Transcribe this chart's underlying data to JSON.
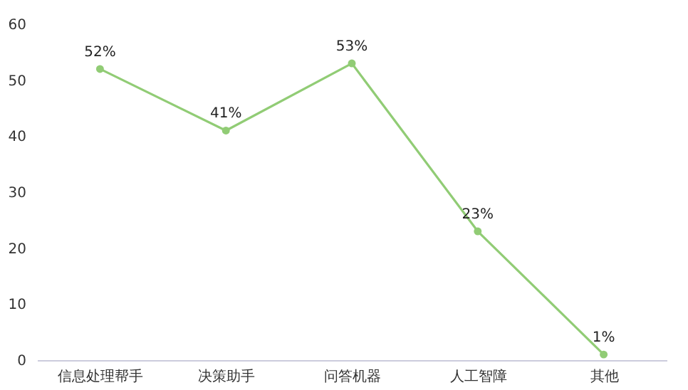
{
  "chart_data": {
    "type": "line",
    "categories": [
      "信息处理帮手",
      "决策助手",
      "问答机器",
      "人工智障",
      "其他"
    ],
    "series": [
      {
        "color": "#91cc75",
        "values": [
          52,
          41,
          53,
          23,
          1
        ],
        "value_labels": [
          "52%",
          "41%",
          "53%",
          "23%",
          "1%"
        ]
      }
    ],
    "ylim": [
      0,
      60
    ],
    "yticks": [
      0,
      10,
      20,
      30,
      40,
      50,
      60
    ],
    "grid": false,
    "marker": "circle",
    "line_style": "solid"
  }
}
